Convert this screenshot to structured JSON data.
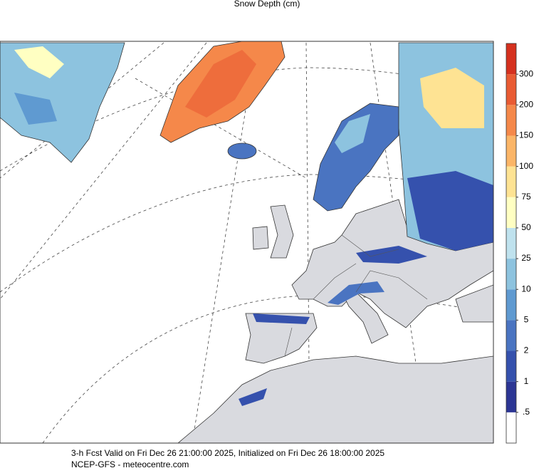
{
  "header": {
    "title": "Snow Depth (cm)"
  },
  "legend": {
    "ticks": [
      {
        "value": 0.5,
        "label": ".5"
      },
      1,
      2,
      5,
      10,
      25,
      50,
      75,
      100,
      150,
      200,
      300
    ],
    "colors": [
      "#ffffff",
      "#2c3694",
      "#3551ad",
      "#4a74c1",
      "#5f9ad1",
      "#8dc3df",
      "#bfe2ee",
      "#ffffc2",
      "#fee393",
      "#fbb567",
      "#f5884a",
      "#e95b33",
      "#d5311f"
    ]
  },
  "footer": {
    "line1": "3-h Fcst Valid on Fri Dec 26 21:00:00 2025, Initialized on Fri Dec 26 18:00:00 2025",
    "line2": "NCEP-GFS  - meteocentre.com"
  }
}
